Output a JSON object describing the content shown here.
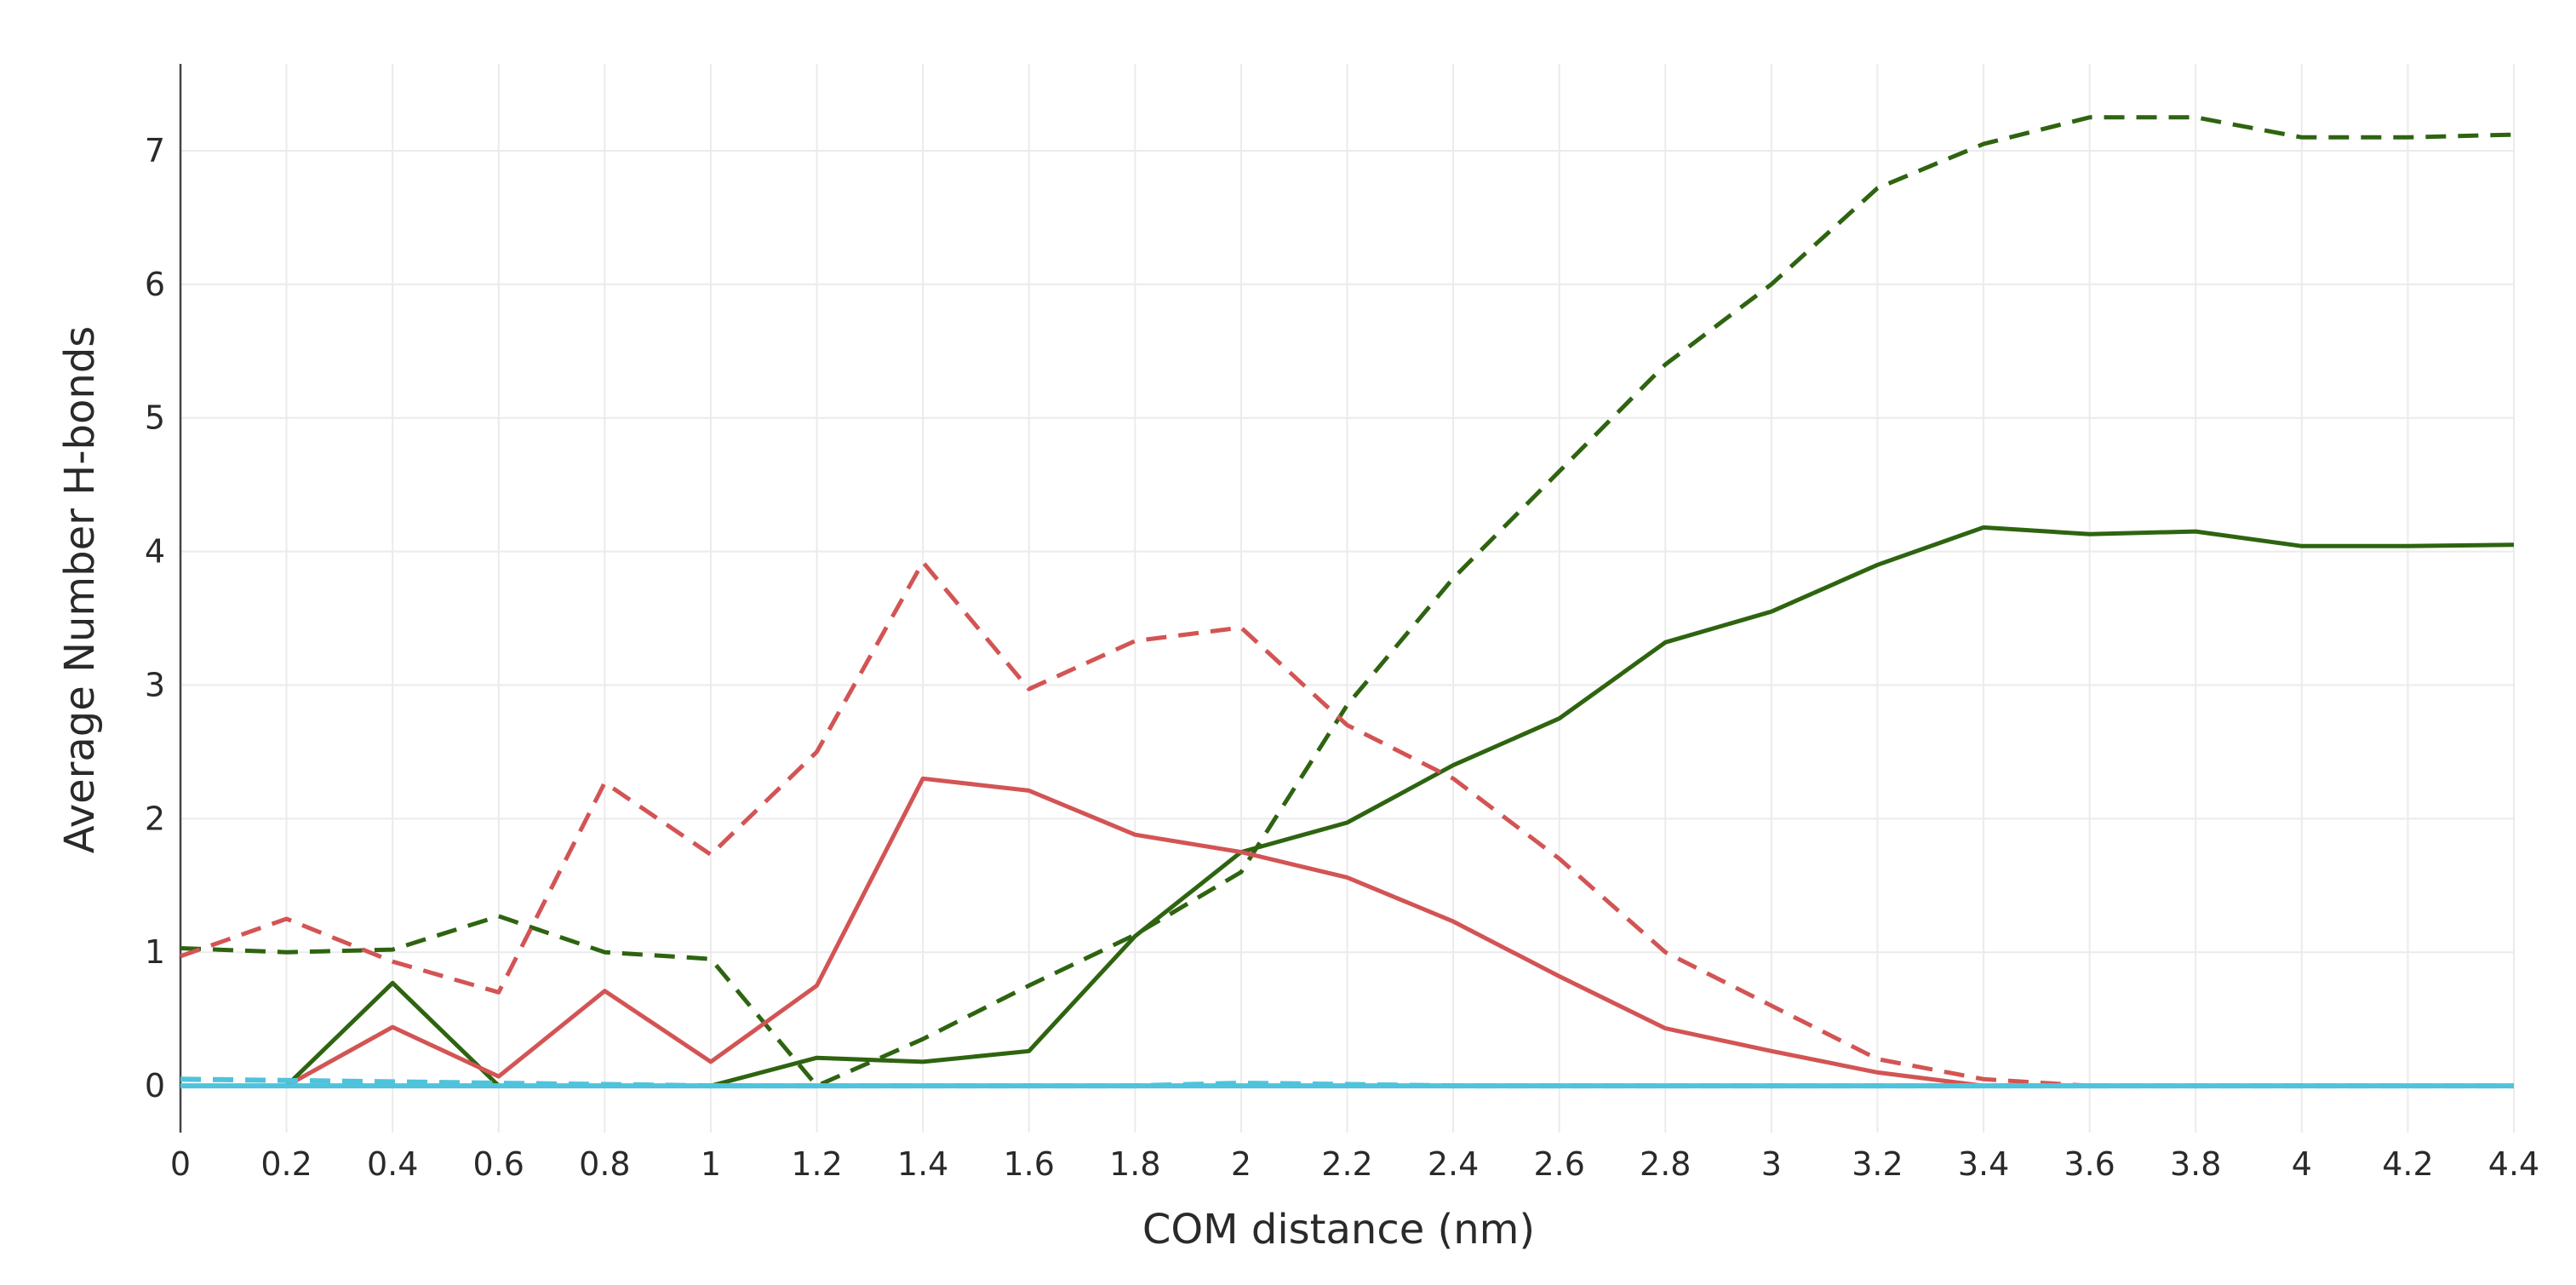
{
  "chart_data": {
    "type": "line",
    "title": "",
    "xlabel": "COM distance (nm)",
    "ylabel": "Average Number H-bonds",
    "xlim": [
      0,
      4.4
    ],
    "ylim": [
      -0.35,
      7.65
    ],
    "x_ticks": [
      "0",
      "0.2",
      "0.4",
      "0.6",
      "0.8",
      "1",
      "1.2",
      "1.4",
      "1.6",
      "1.8",
      "2",
      "2.2",
      "2.4",
      "2.6",
      "2.8",
      "3",
      "3.2",
      "3.4",
      "3.6",
      "3.8",
      "4",
      "4.2",
      "4.4"
    ],
    "y_ticks": [
      "0",
      "1",
      "2",
      "3",
      "4",
      "5",
      "6",
      "7"
    ],
    "grid": true,
    "legend": "none",
    "series": [
      {
        "color": "#2e6410",
        "dash": "dashed",
        "x": [
          0,
          0.2,
          0.4,
          0.6,
          0.8,
          1.0,
          1.2,
          1.4,
          1.6,
          1.8,
          2.0,
          2.2,
          2.4,
          2.6,
          2.8,
          3.0,
          3.2,
          3.4,
          3.6,
          3.8,
          4.0,
          4.2,
          4.4
        ],
        "y": [
          1.03,
          1.0,
          1.02,
          1.27,
          1.0,
          0.95,
          0.0,
          0.35,
          0.75,
          1.13,
          1.6,
          2.85,
          3.8,
          4.6,
          5.4,
          6.0,
          6.72,
          7.05,
          7.25,
          7.25,
          7.1,
          7.1,
          7.12
        ]
      },
      {
        "color": "#2e6410",
        "dash": "solid",
        "x": [
          0,
          0.2,
          0.4,
          0.6,
          0.8,
          1.0,
          1.2,
          1.4,
          1.6,
          1.8,
          2.0,
          2.2,
          2.4,
          2.6,
          2.8,
          3.0,
          3.2,
          3.4,
          3.6,
          3.8,
          4.0,
          4.2,
          4.4
        ],
        "y": [
          0.0,
          0.0,
          0.77,
          0.0,
          0.0,
          0.0,
          0.21,
          0.18,
          0.26,
          1.12,
          1.75,
          1.97,
          2.4,
          2.75,
          3.32,
          3.55,
          3.9,
          4.18,
          4.13,
          4.15,
          4.04,
          4.04,
          4.05
        ]
      },
      {
        "color": "#d35454",
        "dash": "dashed",
        "x": [
          0,
          0.2,
          0.4,
          0.6,
          0.8,
          1.0,
          1.2,
          1.4,
          1.6,
          1.8,
          2.0,
          2.2,
          2.4,
          2.6,
          2.8,
          3.0,
          3.2,
          3.4,
          3.6,
          3.8,
          4.0,
          4.2,
          4.4
        ],
        "y": [
          0.97,
          1.25,
          0.93,
          0.7,
          2.27,
          1.73,
          2.5,
          3.92,
          2.97,
          3.33,
          3.43,
          2.7,
          2.3,
          1.7,
          1.0,
          0.6,
          0.2,
          0.05,
          0.0,
          0.0,
          0.0,
          0.0,
          0.0
        ]
      },
      {
        "color": "#d35454",
        "dash": "solid",
        "x": [
          0,
          0.2,
          0.4,
          0.6,
          0.8,
          1.0,
          1.2,
          1.4,
          1.6,
          1.8,
          2.0,
          2.2,
          2.4,
          2.6,
          2.8,
          3.0,
          3.2,
          3.4,
          3.6,
          3.8,
          4.0,
          4.2,
          4.4
        ],
        "y": [
          0.0,
          0.0,
          0.44,
          0.07,
          0.71,
          0.18,
          0.75,
          2.3,
          2.21,
          1.88,
          1.75,
          1.56,
          1.23,
          0.82,
          0.43,
          0.26,
          0.1,
          0.0,
          0.0,
          0.0,
          0.0,
          0.0,
          0.0
        ]
      },
      {
        "color": "#4fc3dc",
        "dash": "dashed",
        "x": [
          0,
          0.2,
          0.4,
          0.6,
          0.8,
          1.0,
          1.2,
          1.4,
          1.6,
          1.8,
          2.0,
          2.2,
          2.4,
          2.6,
          2.8,
          3.0,
          3.2,
          3.4,
          3.6,
          3.8,
          4.0,
          4.2,
          4.4
        ],
        "y": [
          0.05,
          0.04,
          0.03,
          0.02,
          0.01,
          0.0,
          0.0,
          0.0,
          0.0,
          0.0,
          0.02,
          0.01,
          0.0,
          0.0,
          0.0,
          0.0,
          0.0,
          0.0,
          0.0,
          0.0,
          0.0,
          0.0,
          0.0
        ]
      },
      {
        "color": "#4fc3dc",
        "dash": "solid",
        "x": [
          0,
          0.2,
          0.4,
          0.6,
          0.8,
          1.0,
          1.2,
          1.4,
          1.6,
          1.8,
          2.0,
          2.2,
          2.4,
          2.6,
          2.8,
          3.0,
          3.2,
          3.4,
          3.6,
          3.8,
          4.0,
          4.2,
          4.4
        ],
        "y": [
          0.0,
          0.0,
          0.0,
          0.0,
          0.0,
          0.0,
          0.0,
          0.0,
          0.0,
          0.0,
          0.0,
          0.0,
          0.0,
          0.0,
          0.0,
          0.0,
          0.0,
          0.0,
          0.0,
          0.0,
          0.0,
          0.0,
          0.0
        ]
      }
    ]
  }
}
